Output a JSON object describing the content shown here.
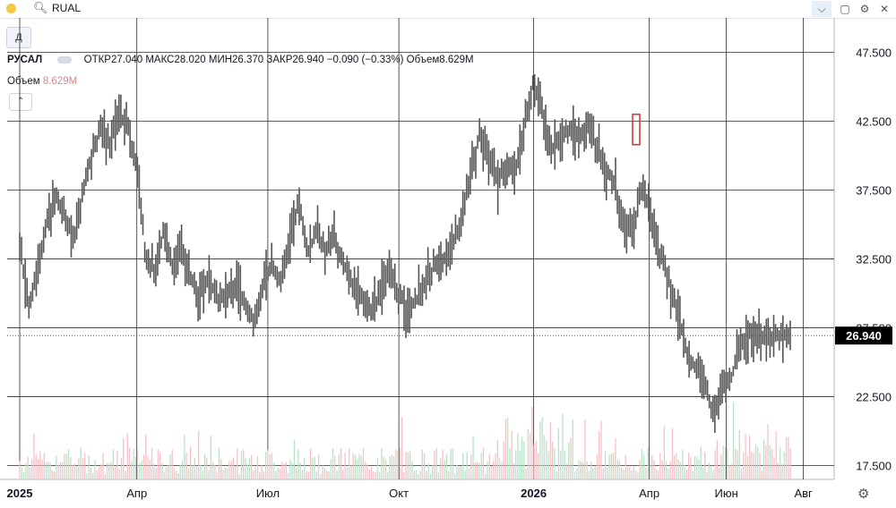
{
  "toolbar": {
    "ticker": "RUAL",
    "search_icon": "search-icon",
    "period_button": "Д"
  },
  "legend": {
    "name": "РУСАЛ",
    "open": "ОТКР27.040",
    "high": "МАКС28.020",
    "low": "МИН26.370",
    "close": "ЗАКР26.940",
    "change": "−0.090 (−0.33%)",
    "volume": "Объем8.629M",
    "volume_label": "Объем",
    "volume_value": "8.629M"
  },
  "colors": {
    "price_line": "#555555",
    "volume_up": "#b7e4c7",
    "volume_down": "#f4c2c7",
    "highlight": "#d32f2f",
    "grid": "#2b2b2b",
    "last_price_bg": "#000000"
  },
  "chart_data": {
    "type": "line",
    "ylim": [
      16.5,
      50.0
    ],
    "y_ticks": [
      "47.500",
      "42.500",
      "37.500",
      "32.500",
      "27.500",
      "22.500",
      "17.500"
    ],
    "y_tick_values": [
      47.5,
      42.5,
      37.5,
      32.5,
      27.5,
      22.5,
      17.5
    ],
    "x_labels": [
      {
        "label": "2025",
        "bold": true,
        "t": 0.0
      },
      {
        "label": "Апр",
        "bold": false,
        "t": 0.152
      },
      {
        "label": "Июл",
        "bold": false,
        "t": 0.322
      },
      {
        "label": "Окт",
        "bold": false,
        "t": 0.492
      },
      {
        "label": "2026",
        "bold": true,
        "t": 0.667
      },
      {
        "label": "Апр",
        "bold": false,
        "t": 0.817
      },
      {
        "label": "Июн",
        "bold": false,
        "t": 0.917
      },
      {
        "label": "Авг",
        "bold": false,
        "t": 1.017
      }
    ],
    "last_price": 26.94,
    "last_price_label": "26.940",
    "price_path_t": [
      0.0,
      0.012,
      0.023,
      0.035,
      0.047,
      0.058,
      0.07,
      0.082,
      0.094,
      0.105,
      0.117,
      0.129,
      0.14,
      0.152,
      0.163,
      0.175,
      0.187,
      0.199,
      0.21,
      0.222,
      0.234,
      0.245,
      0.257,
      0.269,
      0.281,
      0.292,
      0.304,
      0.316,
      0.327,
      0.339,
      0.351,
      0.362,
      0.374,
      0.386,
      0.398,
      0.409,
      0.421,
      0.433,
      0.444,
      0.456,
      0.468,
      0.48,
      0.491,
      0.503,
      0.515,
      0.526,
      0.538,
      0.55,
      0.561,
      0.573,
      0.585,
      0.597,
      0.608,
      0.62,
      0.632,
      0.643,
      0.655,
      0.667,
      0.678,
      0.69,
      0.702,
      0.713,
      0.725,
      0.737,
      0.749,
      0.76,
      0.772,
      0.784,
      0.795,
      0.807,
      0.819,
      0.83,
      0.842,
      0.854,
      0.865,
      0.877,
      0.889,
      0.9,
      0.912,
      0.924,
      0.935,
      0.947,
      0.959,
      0.97,
      0.982,
      0.994,
      1.0
    ],
    "price_path_values": [
      33.5,
      29.0,
      32.0,
      35.0,
      37.0,
      35.5,
      34.0,
      37.5,
      40.0,
      42.0,
      41.0,
      43.0,
      42.0,
      39.0,
      33.0,
      31.5,
      34.5,
      32.0,
      33.0,
      31.0,
      30.0,
      31.0,
      29.5,
      30.0,
      30.5,
      29.0,
      28.0,
      30.5,
      32.0,
      31.0,
      34.0,
      36.5,
      33.0,
      34.5,
      33.0,
      34.0,
      32.0,
      30.5,
      30.0,
      28.5,
      30.0,
      32.0,
      30.0,
      29.0,
      29.5,
      30.5,
      32.0,
      32.5,
      33.5,
      35.5,
      38.5,
      41.5,
      40.0,
      38.0,
      39.5,
      38.5,
      42.0,
      45.5,
      43.0,
      40.5,
      41.0,
      42.0,
      41.5,
      42.2,
      40.5,
      39.0,
      38.0,
      35.0,
      34.5,
      37.5,
      36.0,
      33.0,
      31.0,
      28.5,
      26.0,
      24.5,
      23.5,
      21.0,
      23.0,
      24.0,
      26.0,
      27.0,
      26.9,
      26.9,
      26.9,
      26.9,
      26.94
    ],
    "highlight_candle": {
      "t": 0.8,
      "low": 40.8,
      "high": 43.0
    }
  }
}
